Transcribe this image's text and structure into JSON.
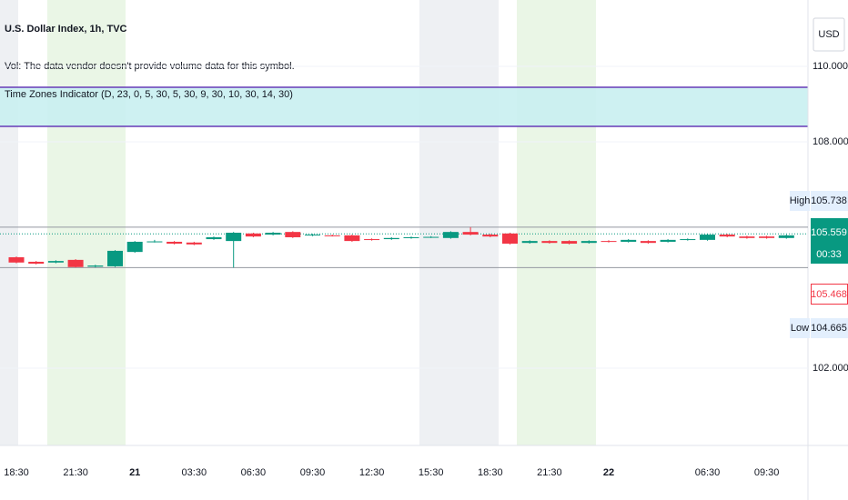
{
  "chart_data": {
    "type": "candlestick",
    "title": "U.S. Dollar Index, 1h, TVC",
    "volume_note": "Vol: The data vendor doesn't provide volume data for this symbol.",
    "indicator": "Time Zones Indicator (D, 23, 0, 5, 30, 5, 30, 9, 30, 10, 30, 14, 30)",
    "currency": "USD",
    "categories": [
      "18:30",
      null,
      null,
      "21:30",
      null,
      null,
      "21",
      null,
      null,
      "03:30",
      null,
      null,
      "06:30",
      null,
      null,
      "09:30",
      null,
      null,
      "12:30",
      null,
      null,
      "15:30",
      null,
      null,
      "18:30",
      null,
      null,
      "21:30",
      null,
      null,
      "22",
      null,
      null,
      null,
      null,
      "06:30",
      null,
      null,
      "09:30",
      null
    ],
    "open": [
      104.94,
      104.82,
      104.8,
      104.87,
      104.69,
      104.7,
      105.08,
      105.35,
      105.35,
      105.33,
      105.42,
      105.37,
      105.57,
      105.54,
      105.61,
      105.52,
      105.52,
      105.52,
      105.42,
      105.42,
      105.45,
      105.47,
      105.45,
      105.61,
      105.54,
      105.57,
      105.32,
      105.37,
      105.37,
      105.32,
      105.37,
      105.35,
      105.37,
      105.35,
      105.4,
      105.4,
      105.54,
      105.49,
      105.49,
      105.45
    ],
    "close": [
      104.8,
      104.77,
      104.84,
      104.68,
      104.72,
      105.11,
      105.35,
      105.36,
      105.3,
      105.28,
      105.47,
      105.59,
      105.49,
      105.59,
      105.47,
      105.54,
      105.51,
      105.37,
      105.4,
      105.45,
      105.47,
      105.48,
      105.61,
      105.54,
      105.49,
      105.3,
      105.37,
      105.32,
      105.3,
      105.37,
      105.35,
      105.4,
      105.32,
      105.4,
      105.42,
      105.54,
      105.49,
      105.45,
      105.45,
      105.52
    ],
    "high": [
      104.96,
      104.84,
      104.86,
      104.89,
      104.74,
      105.13,
      105.37,
      105.4,
      105.37,
      105.35,
      105.49,
      105.61,
      105.59,
      105.61,
      105.63,
      105.56,
      105.54,
      105.54,
      105.44,
      105.47,
      105.49,
      105.5,
      105.63,
      105.738,
      105.56,
      105.59,
      105.39,
      105.39,
      105.39,
      105.39,
      105.39,
      105.42,
      105.39,
      105.42,
      105.44,
      105.56,
      105.56,
      105.51,
      105.51,
      105.54
    ],
    "low": [
      104.78,
      104.75,
      104.78,
      104.67,
      104.67,
      104.68,
      105.06,
      105.33,
      105.28,
      105.26,
      105.4,
      104.665,
      105.47,
      105.52,
      105.45,
      105.5,
      105.49,
      105.35,
      105.38,
      105.4,
      105.43,
      105.45,
      105.43,
      105.52,
      105.47,
      105.28,
      105.3,
      105.3,
      105.28,
      105.3,
      105.33,
      105.33,
      105.3,
      105.33,
      105.38,
      105.38,
      105.47,
      105.43,
      105.43,
      105.43
    ],
    "up_color": "#089981",
    "down_color": "#f23645",
    "ylim": [
      99.95,
      111.76
    ],
    "yticks": [
      {
        "value": 110,
        "label": "110.000"
      },
      {
        "value": 108,
        "label": "108.000"
      },
      {
        "value": 102,
        "label": "102.000"
      }
    ],
    "grid": true,
    "high_label": "High",
    "high_value": 105.738,
    "low_label": "Low",
    "low_value": 104.665,
    "last_value": 105.559,
    "countdown": "00:33",
    "bid_value": 105.468
  }
}
